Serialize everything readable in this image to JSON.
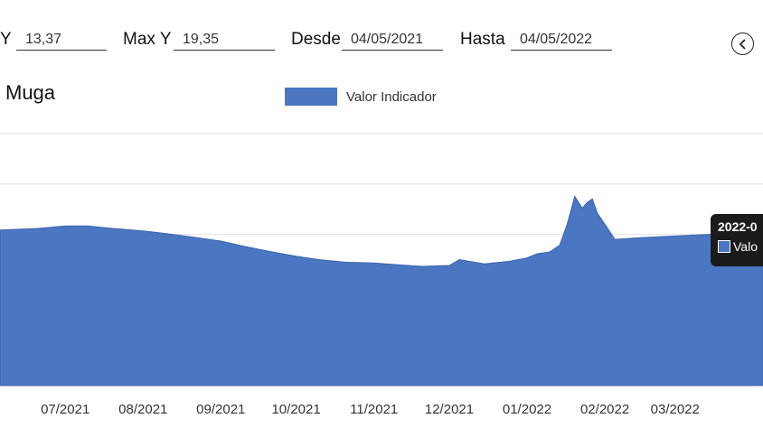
{
  "filters": {
    "min_label": "Y",
    "min_value": "13,37",
    "max_label": "Max Y",
    "max_value": "19,35",
    "from_label": "Desde",
    "from_value": "04/05/2021",
    "to_label": "Hasta",
    "to_value": "04/05/2022"
  },
  "icons": {
    "back": "chevron-left-circle-icon"
  },
  "colors": {
    "series": "#4a76c2",
    "grid": "#e2e2e2",
    "tooltip_bg": "#1b1b1b"
  },
  "tooltip": {
    "title": "2022-0",
    "series_label": "Valo"
  },
  "chart_data": {
    "type": "area",
    "title": "Muga",
    "legend": {
      "position": "top-center",
      "entries": [
        "Valor Indicador"
      ]
    },
    "grid": true,
    "xlabel": "",
    "ylabel": "",
    "xlim": [
      "2021-06-05",
      "2022-04-05"
    ],
    "ylim": [
      13.37,
      19.35
    ],
    "x_tick_labels": [
      "07/2021",
      "08/2021",
      "09/2021",
      "10/2021",
      "11/2021",
      "12/2021",
      "01/2022",
      "02/2022",
      "03/2022"
    ],
    "x_ticks": [
      "2021-07-01",
      "2021-08-01",
      "2021-09-01",
      "2021-10-01",
      "2021-11-01",
      "2021-12-01",
      "2022-01-01",
      "2022-02-01",
      "2022-03-01"
    ],
    "series": [
      {
        "name": "Valor Indicador",
        "x": [
          "2021-06-05",
          "2021-06-20",
          "2021-07-01",
          "2021-07-10",
          "2021-07-20",
          "2021-08-01",
          "2021-08-10",
          "2021-08-20",
          "2021-09-01",
          "2021-09-10",
          "2021-09-20",
          "2021-10-01",
          "2021-10-10",
          "2021-10-20",
          "2021-11-01",
          "2021-11-10",
          "2021-11-20",
          "2021-12-01",
          "2021-12-05",
          "2021-12-15",
          "2021-12-25",
          "2022-01-01",
          "2022-01-05",
          "2022-01-10",
          "2022-01-14",
          "2022-01-17",
          "2022-01-20",
          "2022-01-23",
          "2022-01-25",
          "2022-01-27",
          "2022-01-29",
          "2022-02-01",
          "2022-02-05",
          "2022-02-15",
          "2022-03-01",
          "2022-03-15",
          "2022-03-31",
          "2022-04-02",
          "2022-04-05"
        ],
        "y": [
          17.06,
          17.1,
          17.16,
          17.16,
          17.1,
          17.04,
          16.98,
          16.9,
          16.8,
          16.68,
          16.56,
          16.44,
          16.36,
          16.3,
          16.28,
          16.24,
          16.2,
          16.22,
          16.36,
          16.26,
          16.32,
          16.4,
          16.5,
          16.54,
          16.7,
          17.2,
          17.86,
          17.58,
          17.72,
          17.8,
          17.46,
          17.2,
          16.84,
          16.88,
          16.92,
          16.96,
          16.92,
          17.2,
          17.3
        ]
      }
    ]
  }
}
